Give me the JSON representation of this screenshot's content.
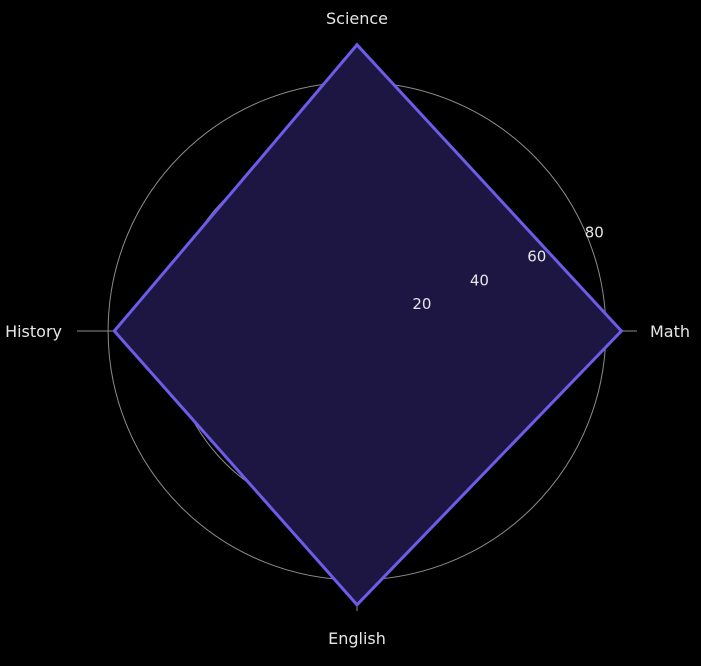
{
  "chart_data": {
    "type": "radar",
    "categories": [
      "Math",
      "Science",
      "History",
      "English"
    ],
    "series": [
      {
        "values": [
          85,
          92,
          78,
          88
        ]
      }
    ],
    "rlim": [
      0,
      90
    ],
    "rticks": [
      20,
      40,
      60,
      80
    ],
    "rtick_labels": [
      "20",
      "40",
      "60",
      "80"
    ],
    "grid": true,
    "colors": {
      "background": "#000000",
      "line": "#6c5ce7",
      "fill": "#1d1642",
      "grid": "#8c8c8c",
      "text": "#e6e6e6"
    }
  }
}
